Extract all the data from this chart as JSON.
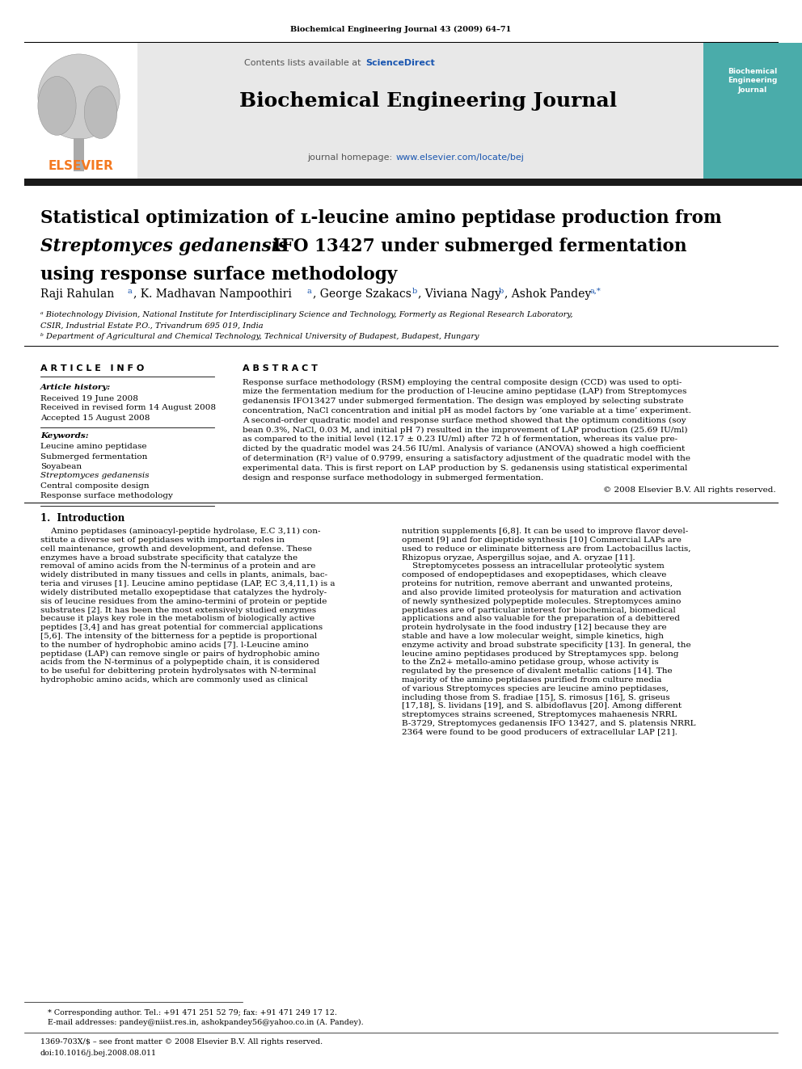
{
  "journal_ref": "Biochemical Engineering Journal 43 (2009) 64–71",
  "contents_text": "Contents lists available at ",
  "sciencedirect_text": "ScienceDirect",
  "journal_name": "Biochemical Engineering Journal",
  "journal_homepage_label": "journal homepage: ",
  "homepage_url": "www.elsevier.com/locate/bej",
  "title_line1": "Statistical optimization of ʟ-leucine amino peptidase production from",
  "title_line2_italic": "Streptomyces gedanensis",
  "title_line2_rest": " IFO 13427 under submerged fermentation",
  "title_line3": "using response surface methodology",
  "affil_a": "ᵃ Biotechnology Division, National Institute for Interdisciplinary Science and Technology, Formerly as Regional Research Laboratory,",
  "affil_a2": "CSIR, Industrial Estate P.O., Trivandrum 695 019, India",
  "affil_b": "ᵇ Department of Agricultural and Chemical Technology, Technical University of Budapest, Budapest, Hungary",
  "article_info_header": "A R T I C L E   I N F O",
  "abstract_header": "A B S T R A C T",
  "article_history_label": "Article history:",
  "received1": "Received 19 June 2008",
  "received2": "Received in revised form 14 August 2008",
  "accepted": "Accepted 15 August 2008",
  "keywords_label": "Keywords:",
  "keyword1": "Leucine amino peptidase",
  "keyword2": "Submerged fermentation",
  "keyword3": "Soyabean",
  "keyword4": "Streptomyces gedanensis",
  "keyword5": "Central composite design",
  "keyword6": "Response surface methodology",
  "abstract_text": "Response surface methodology (RSM) employing the central composite design (CCD) was used to opti-\nmize the fermentation medium for the production of l-leucine amino peptidase (LAP) from Streptomyces\ngedanensis IFO13427 under submerged fermentation. The design was employed by selecting substrate\nconcentration, NaCl concentration and initial pH as model factors by ‘one variable at a time’ experiment.\nA second-order quadratic model and response surface method showed that the optimum conditions (soy\nbean 0.3%, NaCl, 0.03 M, and initial pH 7) resulted in the improvement of LAP production (25.69 IU/ml)\nas compared to the initial level (12.17 ± 0.23 IU/ml) after 72 h of fermentation, whereas its value pre-\ndicted by the quadratic model was 24.56 IU/ml. Analysis of variance (ANOVA) showed a high coefficient\nof determination (R²) value of 0.9799, ensuring a satisfactory adjustment of the quadratic model with the\nexperimental data. This is first report on LAP production by S. gedanensis using statistical experimental\ndesign and response surface methodology in submerged fermentation.",
  "copyright": "© 2008 Elsevier B.V. All rights reserved.",
  "intro_header": "1.  Introduction",
  "intro_col1_text": "    Amino peptidases (aminoacyl-peptide hydrolase, E.C 3,11) con-\nstitute a diverse set of peptidases with important roles in\ncell maintenance, growth and development, and defense. These\nenzymes have a broad substrate specificity that catalyze the\nremoval of amino acids from the N-terminus of a protein and are\nwidely distributed in many tissues and cells in plants, animals, bac-\nteria and viruses [1]. Leucine amino peptidase (LAP, EC 3,4,11,1) is a\nwidely distributed metallo exopeptidase that catalyzes the hydroly-\nsis of leucine residues from the amino-termini of protein or peptide\nsubstrates [2]. It has been the most extensively studied enzymes\nbecause it plays key role in the metabolism of biologically active\npeptides [3,4] and has great potential for commercial applications\n[5,6]. The intensity of the bitterness for a peptide is proportional\nto the number of hydrophobic amino acids [7]. l-Leucine amino\npeptidase (LAP) can remove single or pairs of hydrophobic amino\nacids from the N-terminus of a polypeptide chain, it is considered\nto be useful for debittering protein hydrolysates with N-terminal\nhydrophobic amino acids, which are commonly used as clinical",
  "intro_col2_text": "nutrition supplements [6,8]. It can be used to improve flavor devel-\nopment [9] and for dipeptide synthesis [10] Commercial LAPs are\nused to reduce or eliminate bitterness are from Lactobacillus lactis,\nRhizopus oryzae, Aspergillus sojae, and A. oryzae [11].\n    Streptomycetes possess an intracellular proteolytic system\ncomposed of endopeptidases and exopeptidases, which cleave\nproteins for nutrition, remove aberrant and unwanted proteins,\nand also provide limited proteolysis for maturation and activation\nof newly synthesized polypeptide molecules. Streptomyces amino\npeptidases are of particular interest for biochemical, biomedical\napplications and also valuable for the preparation of a debittered\nprotein hydrolysate in the food industry [12] because they are\nstable and have a low molecular weight, simple kinetics, high\nenzyme activity and broad substrate specificity [13]. In general, the\nleucine amino peptidases produced by Streptamyces spp. belong\nto the Zn2+ metallo-amino petidase group, whose activity is\nregulated by the presence of divalent metallic cations [14]. The\nmajority of the amino peptidases purified from culture media\nof various Streptomyces species are leucine amino peptidases,\nincluding those from S. fradiae [15], S. rimosus [16], S. griseus\n[17,18], S. lividans [19], and S. albidoflavus [20]. Among different\nstreptomyces strains screened, Streptomyces mahaenesis NRRL\nB-3729, Streptomyces gedanensis IFO 13427, and S. platensis NRRL\n2364 were found to be good producers of extracellular LAP [21].",
  "footnote1": "   * Corresponding author. Tel.: +91 471 251 52 79; fax: +91 471 249 17 12.",
  "footnote2": "   E-mail addresses: pandey@niist.res.in, ashokpandey56@yahoo.co.in (A. Pandey).",
  "footer1": "1369-703X/$ – see front matter © 2008 Elsevier B.V. All rights reserved.",
  "footer2": "doi:10.1016/j.bej.2008.08.011",
  "bg_color": "#ffffff",
  "gray_bg": "#e8e8e8",
  "dark_bar": "#1a1a1a",
  "elsevier_orange": "#f47920",
  "link_blue": "#1a56b0",
  "text_black": "#000000",
  "teal_cover": "#4aacaa"
}
